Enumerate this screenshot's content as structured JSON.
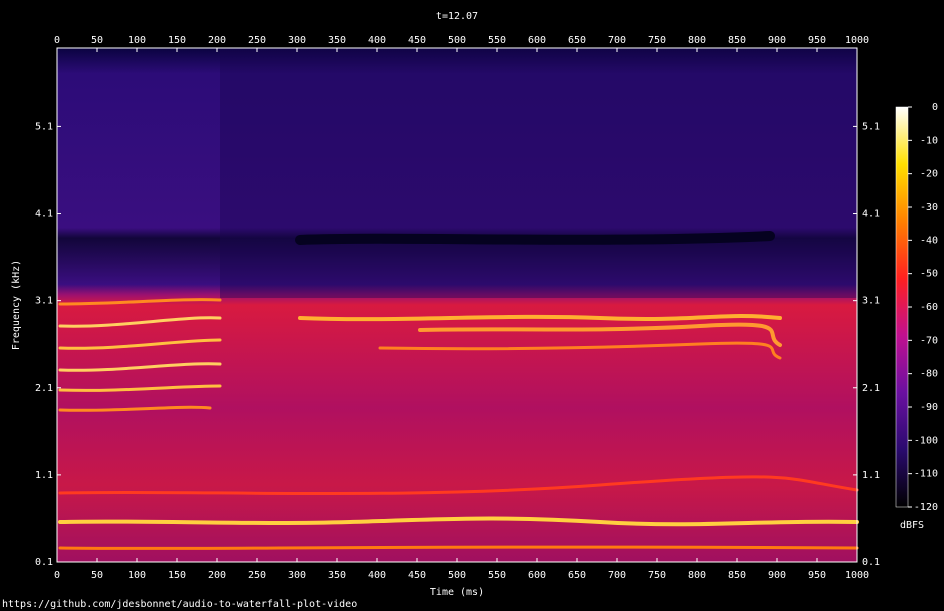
{
  "chart_data": {
    "type": "spectrogram",
    "title": "t=12.07",
    "x_label": "Time (ms)",
    "y_label": "Frequency (kHz)",
    "xlim": [
      0,
      1000
    ],
    "xticks": [
      0,
      50,
      100,
      150,
      200,
      250,
      300,
      350,
      400,
      450,
      500,
      550,
      600,
      650,
      700,
      750,
      800,
      850,
      900,
      950,
      1000
    ],
    "ylim": [
      0.1,
      6.0
    ],
    "yticks": [
      0.1,
      1.1,
      2.1,
      3.1,
      4.1,
      5.1
    ],
    "colorbar": {
      "label": "dBFS",
      "lim": [
        -120,
        0
      ],
      "ticks": [
        0,
        -10,
        -20,
        -30,
        -40,
        -50,
        -60,
        -70,
        -80,
        -90,
        -100,
        -110,
        -120
      ],
      "colormap": [
        "#000000",
        "#2a0a6e",
        "#6a10a0",
        "#c01090",
        "#ff2020",
        "#ff8000",
        "#ffe000",
        "#ffffff"
      ]
    },
    "footer": "https://github.com/jdesbonnet/audio-to-waterfall-plot-video"
  }
}
